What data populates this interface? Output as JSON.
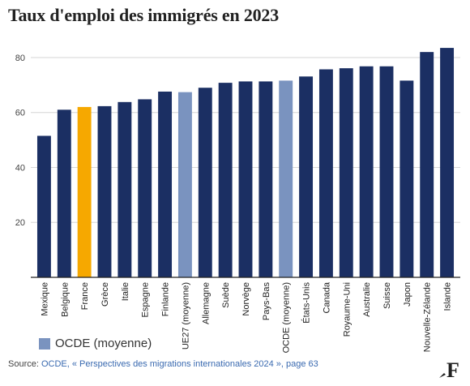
{
  "title": "Taux d'emploi des immigrés en 2023",
  "chart_data": {
    "type": "bar",
    "categories": [
      "Mexique",
      "Belgique",
      "France",
      "Grèce",
      "Italie",
      "Espagne",
      "Finlande",
      "UE27 (moyenne)",
      "Allemagne",
      "Suède",
      "Norvège",
      "Pays-Bas",
      "OCDE (moyenne)",
      "États-Unis",
      "Canada",
      "Royaume-Uni",
      "Australie",
      "Suisse",
      "Japon",
      "Nouvelle-Zélande",
      "Islande"
    ],
    "values": [
      51.5,
      61,
      62,
      62.3,
      63.8,
      64.8,
      67.6,
      67.4,
      69,
      70.8,
      71.3,
      71.3,
      71.6,
      73.1,
      75.7,
      76.1,
      76.8,
      76.8,
      71.6,
      82,
      83.5
    ],
    "highlight": {
      "France": "#f6a800",
      "UE27 (moyenne)": "#7a93bf",
      "OCDE (moyenne)": "#7a93bf"
    },
    "bar_color": "#1b2f63",
    "ylim": [
      0,
      85
    ],
    "yticks": [
      20,
      40,
      60,
      80
    ],
    "grid": true
  },
  "legend": {
    "label": "OCDE (moyenne)",
    "color": "#7a93bf"
  },
  "source": {
    "prefix": "Source: ",
    "text": "OCDE, « Perspectives des migrations internationales 2024 », page 63"
  },
  "logo": {
    "letter": "F"
  }
}
